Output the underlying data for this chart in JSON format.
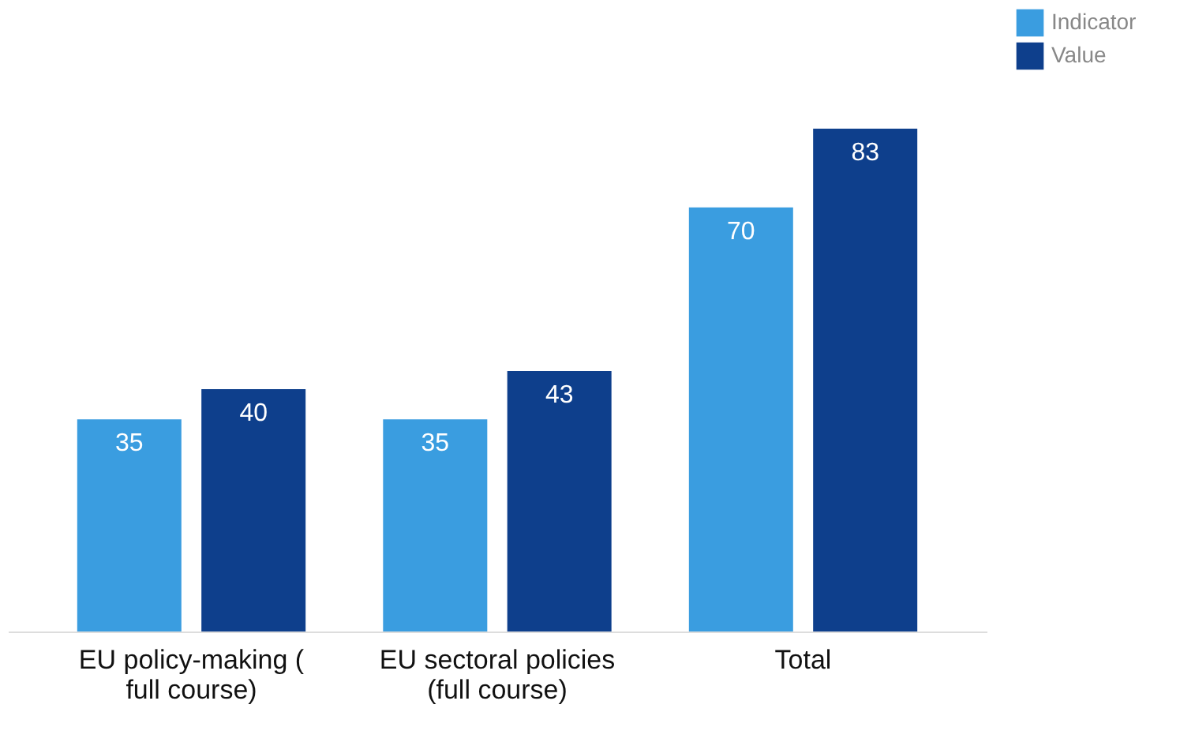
{
  "chart_data": {
    "type": "bar",
    "categories": [
      "EU policy-making ( full course)",
      "EU sectoral policies (full course)",
      "Total"
    ],
    "series": [
      {
        "name": "Indicator",
        "color": "#3a9de0",
        "values": [
          35,
          35,
          70
        ]
      },
      {
        "name": "Value",
        "color": "#0e3f8c",
        "values": [
          40,
          43,
          83
        ]
      }
    ],
    "data_labels": true,
    "legend": "top right",
    "grid": false
  }
}
